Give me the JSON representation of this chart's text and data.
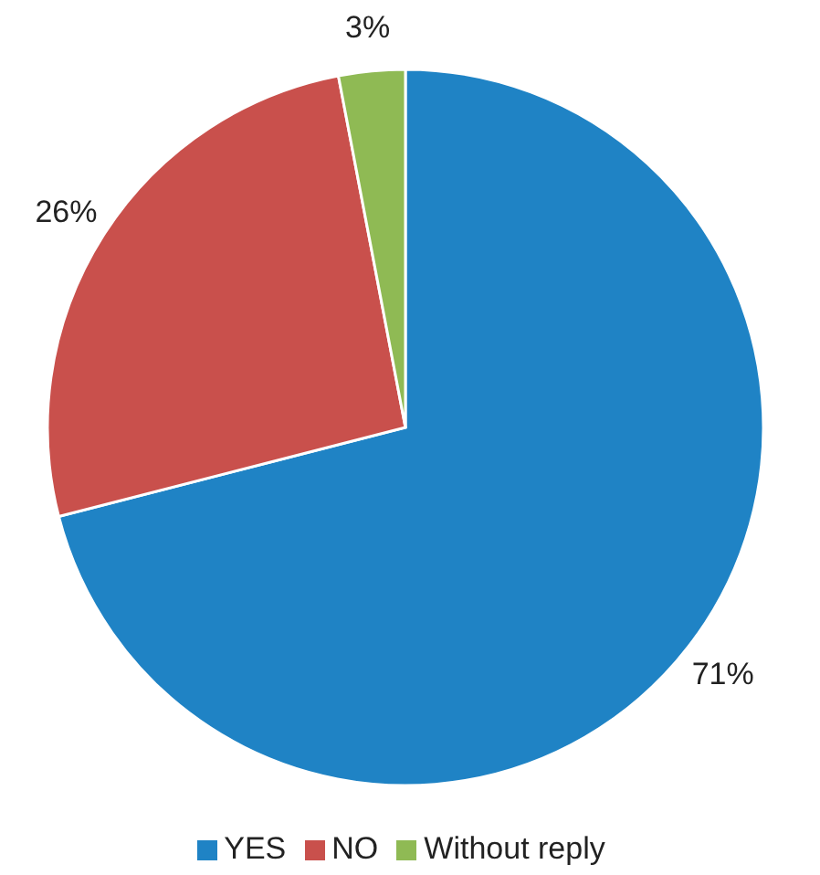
{
  "chart_data": {
    "type": "pie",
    "categories": [
      "YES",
      "NO",
      "Without reply"
    ],
    "values": [
      71,
      26,
      3
    ],
    "colors": [
      "#1f83c5",
      "#c9504c",
      "#8fba54"
    ],
    "value_labels": [
      "71%",
      "26%",
      "3%"
    ],
    "legend": "bottom"
  }
}
